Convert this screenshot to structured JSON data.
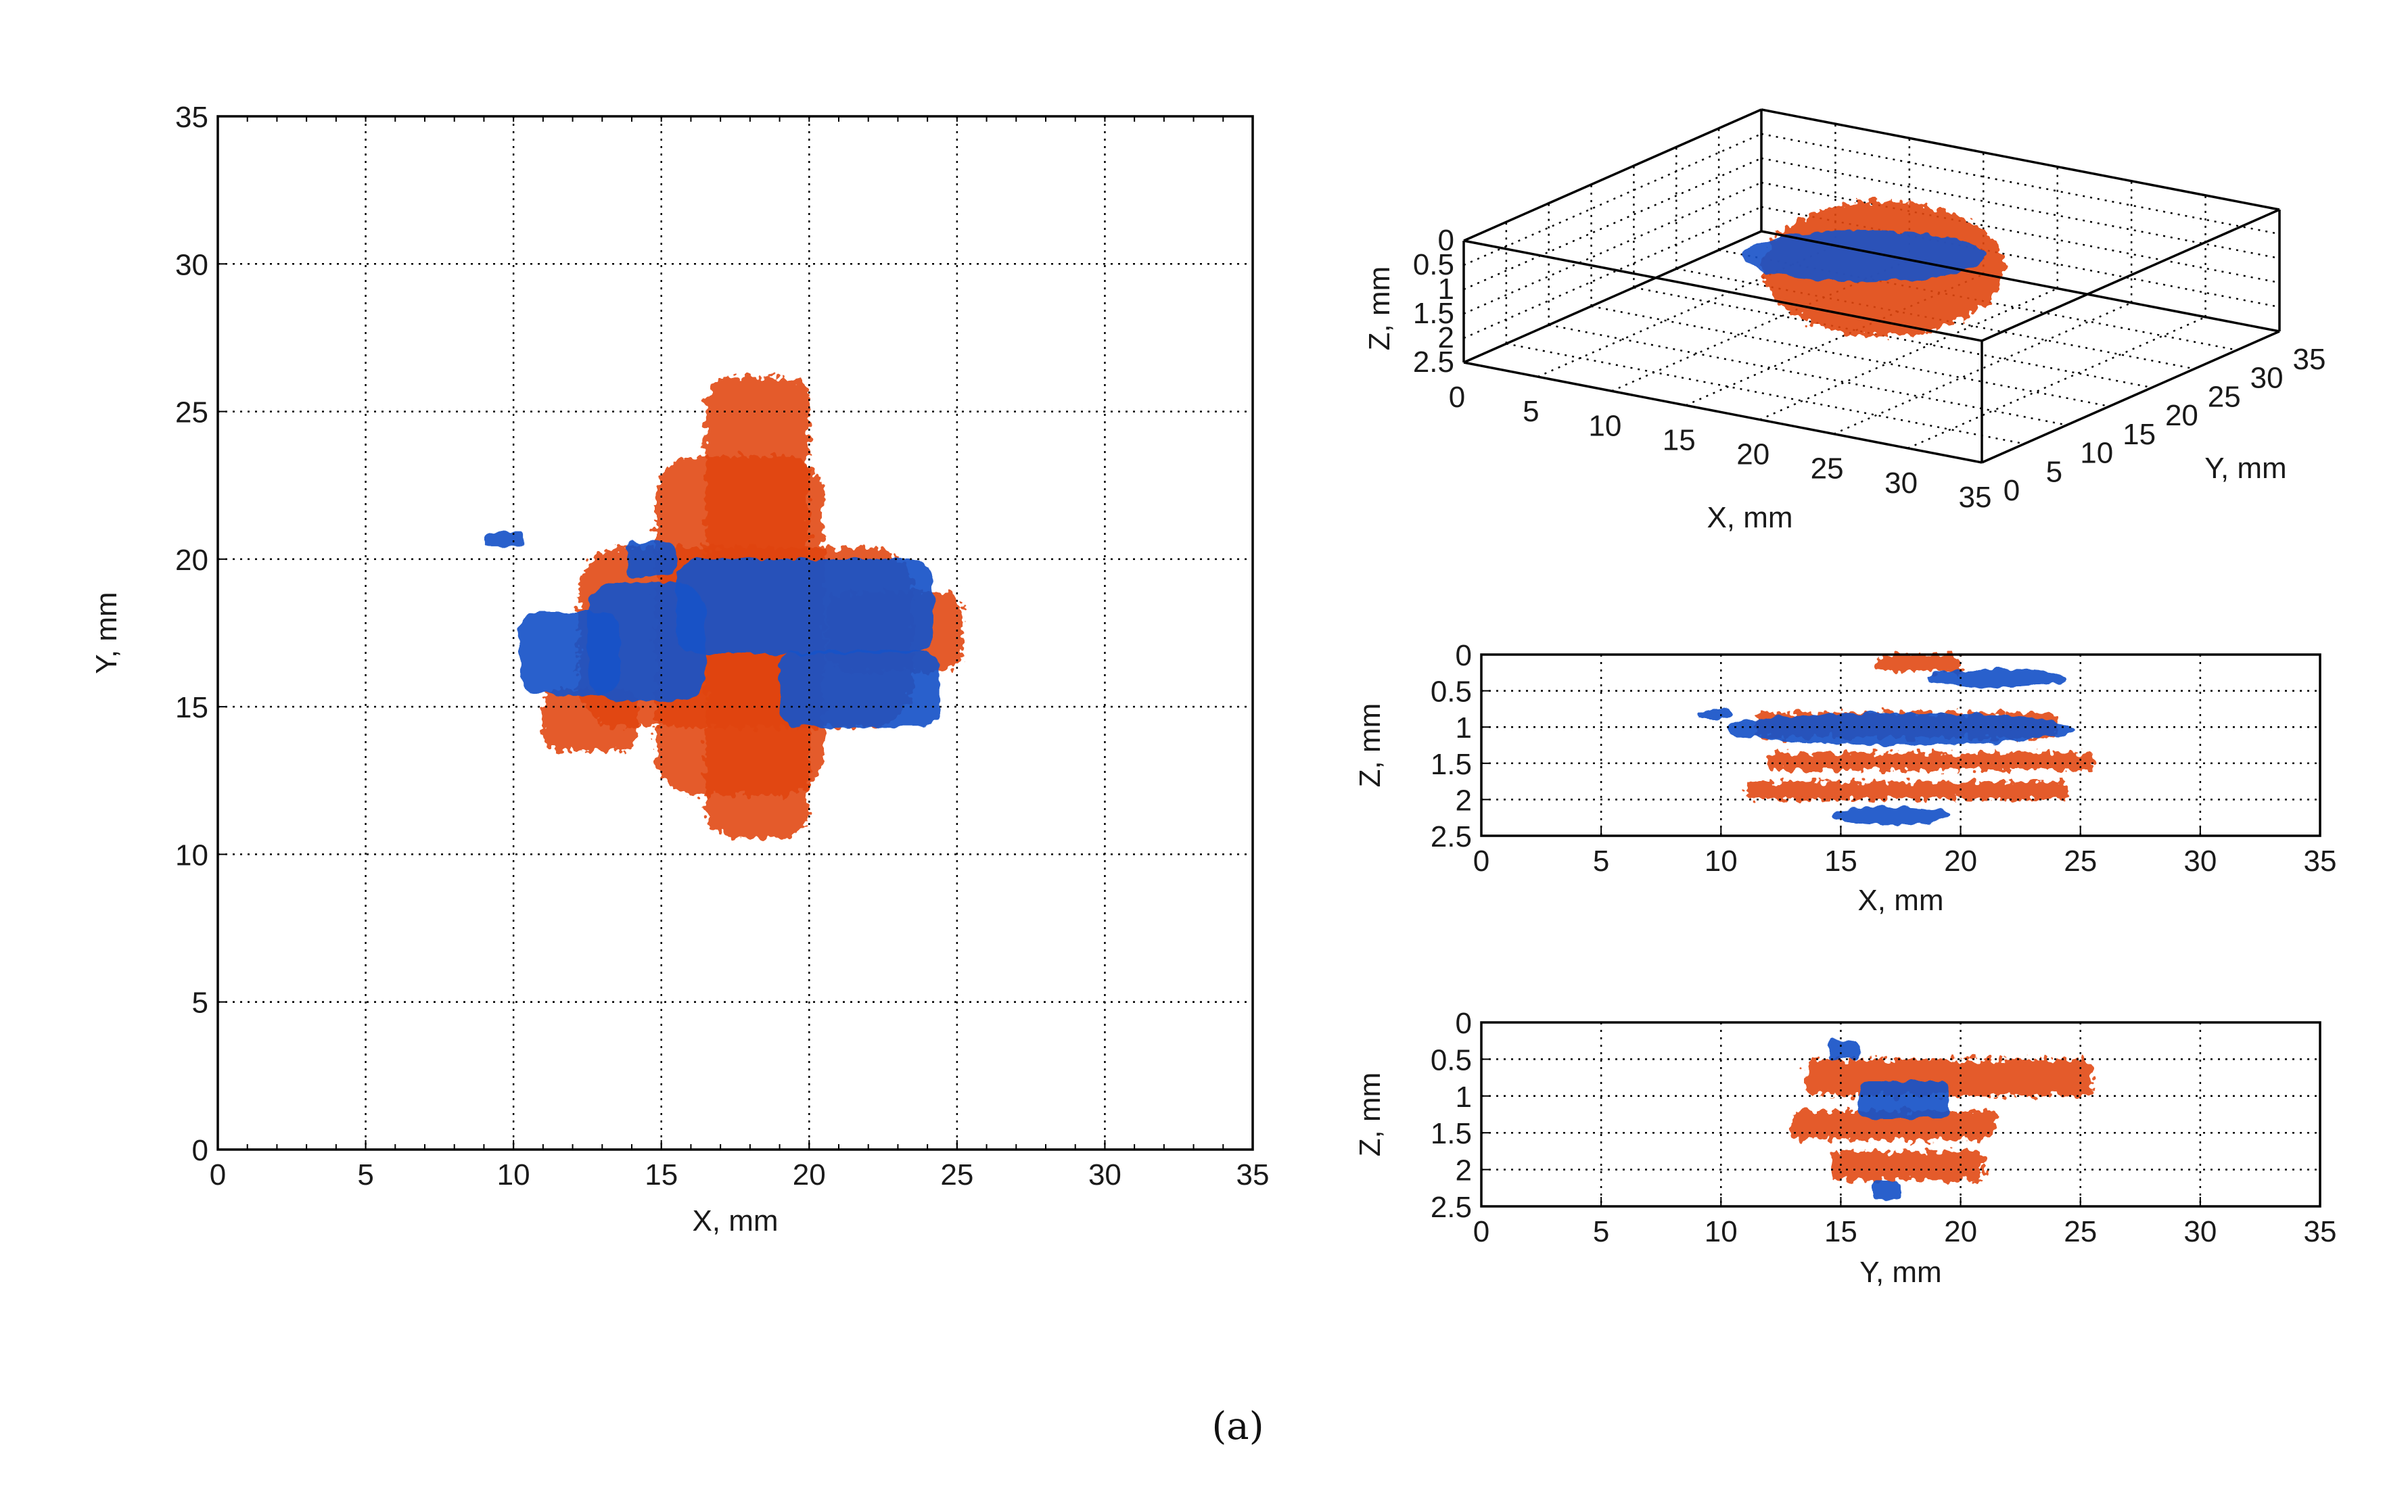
{
  "caption": "(a)",
  "colors": {
    "scan_a": "#e0450d",
    "scan_b": "#1652c8"
  },
  "chart_data": [
    {
      "id": "xy",
      "type": "scatter",
      "title": "",
      "xlabel": "X, mm",
      "ylabel": "Y, mm",
      "xlim": [
        0,
        35
      ],
      "ylim": [
        0,
        35
      ],
      "xticks": [
        "0",
        "5",
        "10",
        "15",
        "20",
        "25",
        "30",
        "35"
      ],
      "yticks": [
        "0",
        "5",
        "10",
        "15",
        "20",
        "25",
        "30",
        "35"
      ],
      "grid": true,
      "series": [
        {
          "name": "blue",
          "regions": [
            {
              "x": [
                10.2,
                13.6
              ],
              "y": [
                15.4,
                18.2
              ]
            },
            {
              "x": [
                12.5,
                16.5
              ],
              "y": [
                15.2,
                19.2
              ]
            },
            {
              "x": [
                15.5,
                24.2
              ],
              "y": [
                16.8,
                20.0
              ]
            },
            {
              "x": [
                19.0,
                24.4
              ],
              "y": [
                14.3,
                16.9
              ]
            },
            {
              "x": [
                13.8,
                15.5
              ],
              "y": [
                19.4,
                20.6
              ]
            },
            {
              "x": [
                9.0,
                10.4
              ],
              "y": [
                20.4,
                20.9
              ]
            }
          ]
        },
        {
          "name": "orange",
          "regions": [
            {
              "x": [
                14.8,
                20.5
              ],
              "y": [
                12.0,
                23.5
              ]
            },
            {
              "x": [
                12.2,
                23.5
              ],
              "y": [
                14.3,
                20.4
              ]
            },
            {
              "x": [
                16.5,
                20.0
              ],
              "y": [
                10.6,
                26.2
              ]
            },
            {
              "x": [
                11.0,
                14.2
              ],
              "y": [
                13.5,
                15.6
              ]
            },
            {
              "x": [
                20.6,
                25.2
              ],
              "y": [
                16.2,
                18.9
              ]
            }
          ]
        }
      ]
    },
    {
      "id": "xyz",
      "type": "scatter",
      "title": "",
      "xlabel": "X, mm",
      "ylabel": "Y, mm",
      "zlabel": "Z, mm",
      "xlim": [
        0,
        35
      ],
      "ylim": [
        0,
        35
      ],
      "zlim": [
        0,
        2.5
      ],
      "xticks": [
        "0",
        "5",
        "10",
        "15",
        "20",
        "25",
        "30",
        "35"
      ],
      "yticks": [
        "0",
        "5",
        "10",
        "15",
        "20",
        "25",
        "30",
        "35"
      ],
      "zticks": [
        "0",
        "0.5",
        "1",
        "1.5",
        "2",
        "2.5"
      ],
      "grid": true,
      "series": [
        {
          "name": "blue",
          "regions": [
            {
              "x": [
                10,
                24
              ],
              "y": [
                14,
                21
              ],
              "z": [
                0.3,
                2.4
              ]
            }
          ]
        },
        {
          "name": "orange",
          "regions": [
            {
              "x": [
                11,
                25
              ],
              "y": [
                10,
                26
              ],
              "z": [
                0,
                2.3
              ]
            }
          ]
        }
      ]
    },
    {
      "id": "xz",
      "type": "scatter",
      "title": "",
      "xlabel": "X, mm",
      "ylabel": "Z, mm",
      "xlim": [
        0,
        35
      ],
      "ylim": [
        0,
        2.5
      ],
      "y_reversed": true,
      "xticks": [
        "0",
        "5",
        "10",
        "15",
        "20",
        "25",
        "30",
        "35"
      ],
      "yticks": [
        "0",
        "0.5",
        "1",
        "1.5",
        "2",
        "2.5"
      ],
      "grid": true,
      "series": [
        {
          "name": "blue",
          "regions": [
            {
              "x": [
                18.5,
                24.4
              ],
              "y": [
                0.2,
                0.45
              ]
            },
            {
              "x": [
                10.2,
                24.8
              ],
              "y": [
                0.8,
                1.25
              ]
            },
            {
              "x": [
                9.0,
                10.5
              ],
              "y": [
                0.75,
                0.9
              ]
            },
            {
              "x": [
                14.6,
                19.6
              ],
              "y": [
                2.1,
                2.35
              ]
            }
          ]
        },
        {
          "name": "orange",
          "regions": [
            {
              "x": [
                16.5,
                20.0
              ],
              "y": [
                0,
                0.25
              ]
            },
            {
              "x": [
                11.5,
                24.0
              ],
              "y": [
                0.8,
                1.15
              ]
            },
            {
              "x": [
                12.0,
                25.5
              ],
              "y": [
                1.35,
                1.6
              ]
            },
            {
              "x": [
                11.0,
                24.5
              ],
              "y": [
                1.75,
                2.0
              ]
            }
          ]
        }
      ]
    },
    {
      "id": "yz",
      "type": "scatter",
      "title": "",
      "xlabel": "Y, mm",
      "ylabel": "Z, mm",
      "xlim": [
        0,
        35
      ],
      "ylim": [
        0,
        2.5
      ],
      "y_reversed": true,
      "xticks": [
        "0",
        "5",
        "10",
        "15",
        "20",
        "25",
        "30",
        "35"
      ],
      "yticks": [
        "0",
        "0.5",
        "1",
        "1.5",
        "2",
        "2.5"
      ],
      "grid": true,
      "series": [
        {
          "name": "blue",
          "regions": [
            {
              "x": [
                14.5,
                15.8
              ],
              "y": [
                0.25,
                0.5
              ]
            },
            {
              "x": [
                15.8,
                19.5
              ],
              "y": [
                0.8,
                1.3
              ]
            },
            {
              "x": [
                16.3,
                17.5
              ],
              "y": [
                2.15,
                2.4
              ]
            }
          ]
        },
        {
          "name": "orange",
          "regions": [
            {
              "x": [
                13.5,
                25.5
              ],
              "y": [
                0.5,
                1.0
              ]
            },
            {
              "x": [
                13.0,
                21.5
              ],
              "y": [
                1.2,
                1.6
              ]
            },
            {
              "x": [
                14.5,
                21.0
              ],
              "y": [
                1.75,
                2.15
              ]
            }
          ]
        }
      ]
    }
  ]
}
